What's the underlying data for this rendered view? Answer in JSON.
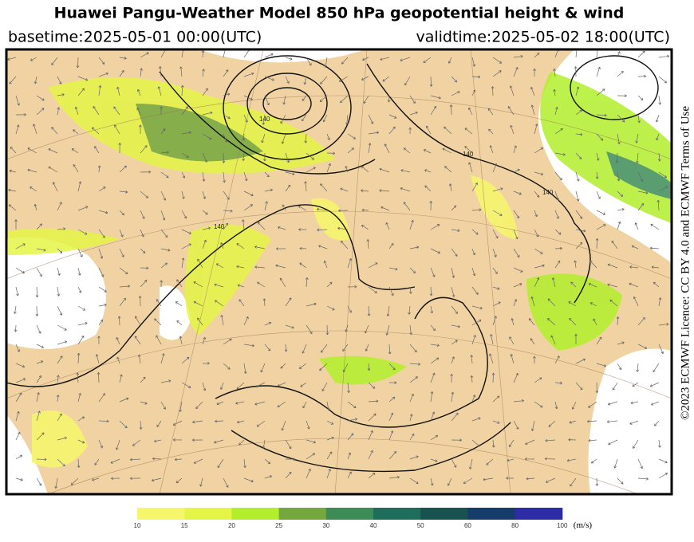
{
  "header": {
    "title": "Huawei Pangu-Weather Model 850 hPa geopotential height & wind",
    "basetime": "basetime:2025-05-01 00:00(UTC)",
    "validtime": "validtime:2025-05-02 18:00(UTC)"
  },
  "license": "©2023 ECMWF Licence: CC BY 4.0 and ECMWF Terms of Use",
  "map": {
    "contour_labels": [
      "140",
      "140",
      "140",
      "140"
    ]
  },
  "colorbar": {
    "labels": [
      10,
      15,
      20,
      25,
      30,
      40,
      50,
      60,
      80,
      100
    ],
    "colors": [
      "#f6f66a",
      "#e4f547",
      "#b2ee2c",
      "#74a83c",
      "#3d8c58",
      "#1f6e5c",
      "#17524f",
      "#163c6c",
      "#2b2ca6"
    ],
    "unit": "(m/s)"
  }
}
